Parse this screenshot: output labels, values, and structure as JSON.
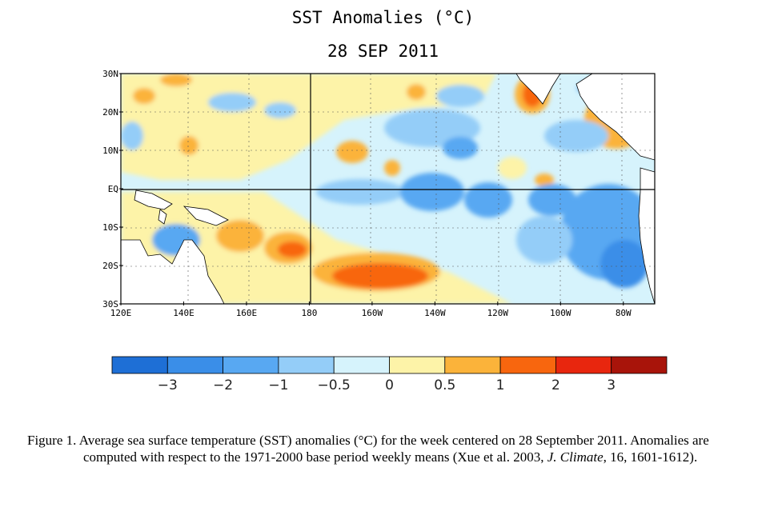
{
  "title": "SST Anomalies (°C)",
  "date": "28 SEP 2011",
  "map": {
    "lat_labels": [
      "30N",
      "20N",
      "10N",
      "EQ",
      "10S",
      "20S",
      "30S"
    ],
    "lon_labels": [
      "120E",
      "140E",
      "160E",
      "180",
      "160W",
      "140W",
      "120W",
      "100W",
      "80W"
    ]
  },
  "colorbar": {
    "colors": [
      "#1e6fd6",
      "#3a8ee8",
      "#58a8f2",
      "#94cdf8",
      "#d6f3fc",
      "#fdf3a8",
      "#fbb33a",
      "#f8660e",
      "#e8260e",
      "#a8140a"
    ],
    "labels": [
      "−3",
      "−2",
      "−1",
      "−0.5",
      "0",
      "0.5",
      "1",
      "2",
      "3"
    ]
  },
  "caption": {
    "part1": "Figure 1. Average sea surface temperature (SST) anomalies (°C) for the week centered on 28 September 2011.   Anomalies are computed with respect to the 1971-2000 base period weekly means (Xue et al. 2003, ",
    "journal": "J. Climate",
    "volume": "16",
    "part2": ", 1601-1612)."
  }
}
